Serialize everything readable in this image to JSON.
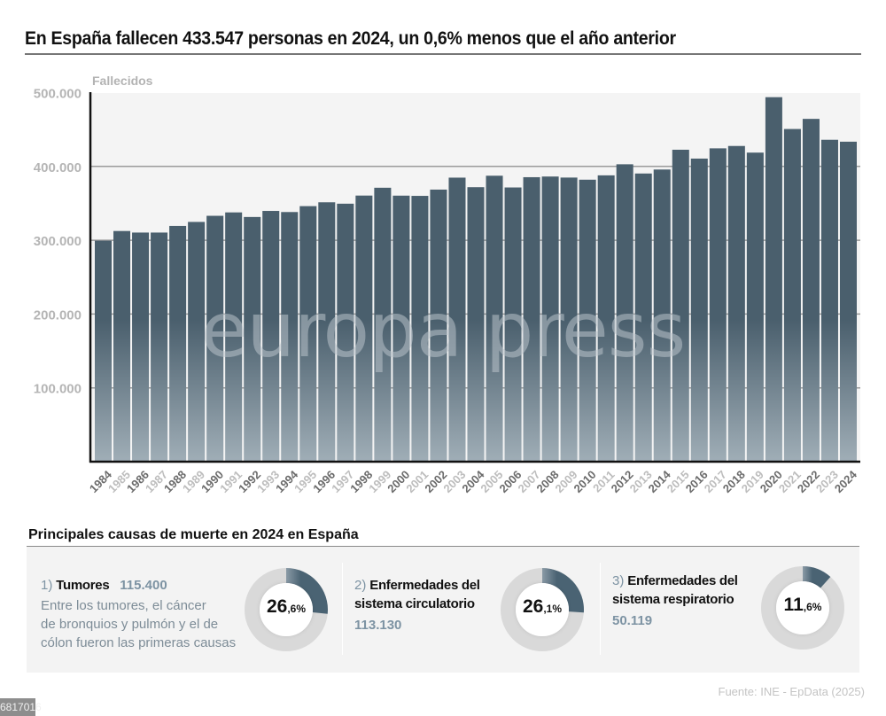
{
  "header": {
    "title": "En España fallecen 433.547 personas en 2024, un 0,6% menos que el año anterior"
  },
  "chart_data": {
    "type": "bar",
    "title": "En España fallecen 433.547 personas en 2024, un 0,6% menos que el año anterior",
    "xlabel": "",
    "ylabel": "Fallecidos",
    "ylim": [
      0,
      500000
    ],
    "yticks": [
      100000,
      200000,
      300000,
      400000,
      500000
    ],
    "ytick_labels": [
      "100.000",
      "200.000",
      "300.000",
      "400.000",
      "500.000"
    ],
    "grid": true,
    "legend": "none",
    "bar_color": "#4a5f6d",
    "categories": [
      "1984",
      "1985",
      "1986",
      "1987",
      "1988",
      "1989",
      "1990",
      "1991",
      "1992",
      "1993",
      "1994",
      "1995",
      "1996",
      "1997",
      "1998",
      "1999",
      "2000",
      "2001",
      "2002",
      "2003",
      "2004",
      "2005",
      "2006",
      "2007",
      "2008",
      "2009",
      "2010",
      "2011",
      "2012",
      "2013",
      "2014",
      "2015",
      "2016",
      "2017",
      "2018",
      "2019",
      "2020",
      "2021",
      "2022",
      "2023",
      "2024"
    ],
    "values": [
      299400,
      312500,
      310400,
      310400,
      319400,
      324800,
      333100,
      337700,
      331500,
      339700,
      338200,
      346200,
      351400,
      349500,
      360500,
      371100,
      360400,
      360100,
      368600,
      384800,
      371900,
      387400,
      371500,
      385400,
      386300,
      384900,
      382000,
      387900,
      402900,
      390400,
      395800,
      422600,
      410600,
      424500,
      427700,
      418700,
      493800,
      450700,
      464400,
      436100,
      433500
    ],
    "watermark": "europa press"
  },
  "causes_section": {
    "title": "Principales causas de muerte en 2024 en España",
    "items": [
      {
        "rank": "1)",
        "name": "Tumores",
        "count": "115.400",
        "description_lines": [
          "Entre los tumores, el cáncer",
          "de bronquios y pulmón y el de",
          "cólon fueron las primeras causas"
        ],
        "percent": 26.6,
        "percent_int": "26",
        "percent_dec": ",6%"
      },
      {
        "rank": "2)",
        "name_lines": [
          "Enfermedades del",
          "sistema circulatorio"
        ],
        "count": "113.130",
        "percent": 26.1,
        "percent_int": "26",
        "percent_dec": ",1%"
      },
      {
        "rank": "3)",
        "name_lines": [
          "Enfermedades del",
          "sistema respiratorio"
        ],
        "count": "50.119",
        "percent": 11.6,
        "percent_int": "11",
        "percent_dec": ",6%"
      }
    ]
  },
  "footer": {
    "source": "Fuente: INE - EpData (2025)",
    "image_id": "6817016"
  },
  "colors": {
    "bar": "#4a5f6d",
    "donut_track": "#d9d9d9",
    "donut_fill": "#4a6373",
    "accent_text": "#7d93a3"
  }
}
